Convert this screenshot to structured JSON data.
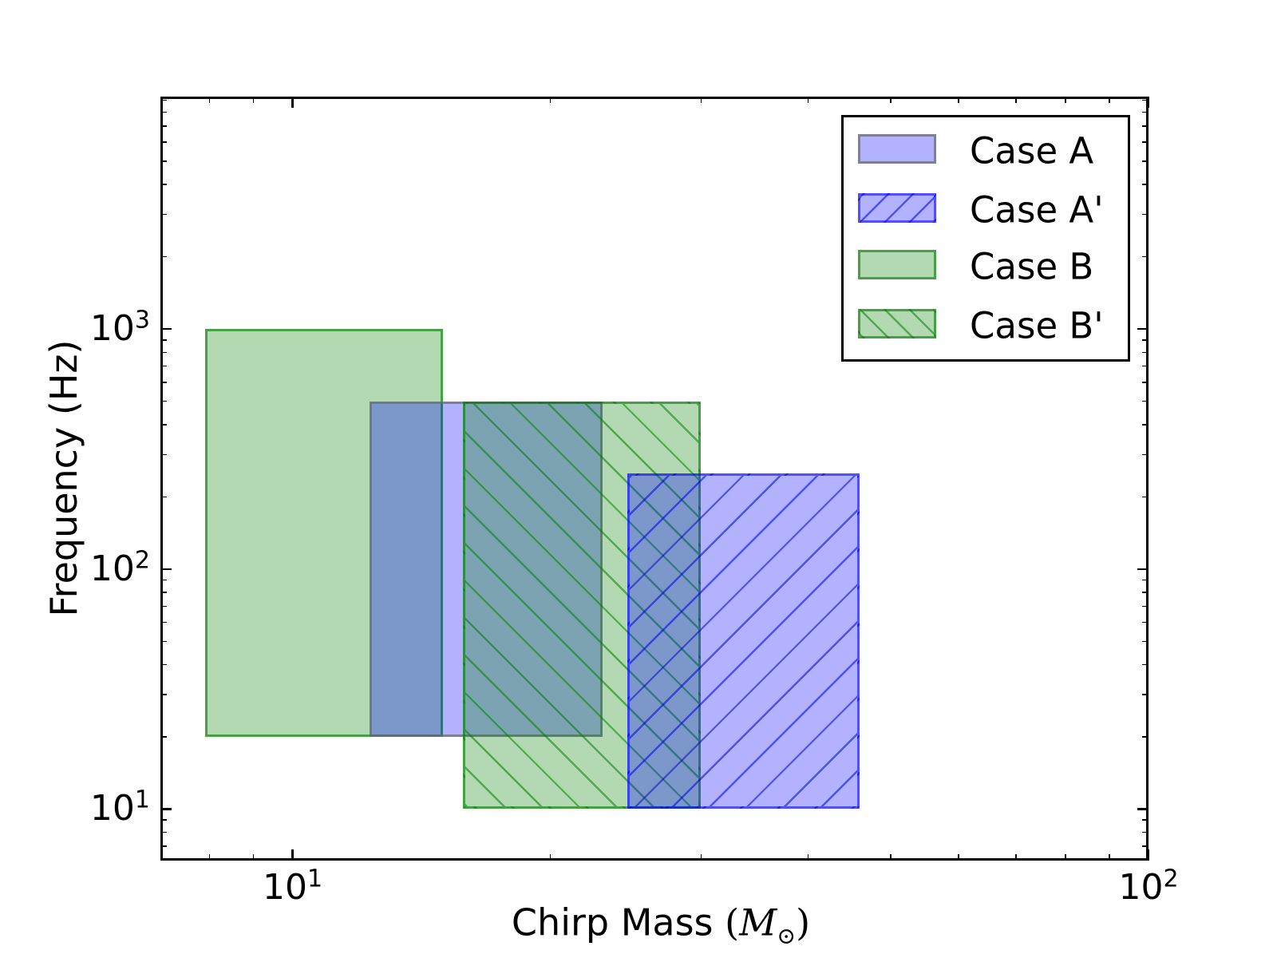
{
  "labels": {
    "ylabel": "Frequency (Hz)",
    "xlabel_text": "Chirp Mass ",
    "xlabel_open": "(",
    "xlabel_var": "M",
    "xlabel_sub": "⊙",
    "xlabel_close": ")",
    "xtick_labels": [
      {
        "base": "10",
        "exp": "1"
      },
      {
        "base": "10",
        "exp": "2"
      }
    ],
    "ytick_labels": [
      {
        "base": "10",
        "exp": "1"
      },
      {
        "base": "10",
        "exp": "2"
      },
      {
        "base": "10",
        "exp": "3"
      }
    ]
  },
  "legend": {
    "position": "upper right",
    "items": [
      {
        "label": "Case A",
        "series_index": 0
      },
      {
        "label": "Case A'",
        "series_index": 1
      },
      {
        "label": "Case B",
        "series_index": 2
      },
      {
        "label": "Case B'",
        "series_index": 3
      }
    ]
  },
  "chart_data": {
    "type": "area",
    "subtype": "parameter-space-rectangles",
    "title": "",
    "xlabel": "Chirp Mass (M_sun)",
    "ylabel": "Frequency (Hz)",
    "xscale": "log",
    "yscale": "log",
    "xlim": [
      7,
      100
    ],
    "ylim": [
      6.1,
      9300
    ],
    "grid": false,
    "legend_position": "upper right",
    "xticks_major": [
      10,
      100
    ],
    "xticks_major_labels": [
      "10^1",
      "10^2"
    ],
    "xticks_minor": [
      8,
      9,
      20,
      30,
      40,
      50,
      60,
      70,
      80,
      90
    ],
    "yticks_major": [
      10,
      100,
      1000
    ],
    "yticks_major_labels": [
      "10^1",
      "10^2",
      "10^3"
    ],
    "yticks_minor": [
      7,
      8,
      9,
      20,
      30,
      40,
      50,
      60,
      70,
      80,
      90,
      200,
      300,
      400,
      500,
      600,
      700,
      800,
      900,
      2000,
      3000,
      4000,
      5000,
      6000,
      7000,
      8000,
      9000
    ],
    "series": [
      {
        "name": "Case A",
        "x_range": [
          12.3,
          23.0
        ],
        "y_range_hz": [
          20,
          500
        ],
        "fill": "rgba(0,0,255,0.3)",
        "edge": "rgba(110,110,118,0.75)",
        "hatch": "none",
        "hatch_color": ""
      },
      {
        "name": "Case A'",
        "x_range": [
          24.6,
          46.0
        ],
        "y_range_hz": [
          10,
          250
        ],
        "fill": "rgba(0,0,255,0.3)",
        "edge": "rgba(0,0,255,0.55)",
        "hatch": "/",
        "hatch_color": "rgba(0,0,220,0.55)"
      },
      {
        "name": "Case B",
        "x_range": [
          7.9,
          15.0
        ],
        "y_range_hz": [
          20,
          1000
        ],
        "fill": "rgba(0,128,0,0.3)",
        "edge": "rgba(0,128,0,0.62)",
        "hatch": "none",
        "hatch_color": ""
      },
      {
        "name": "Case B'",
        "x_range": [
          15.8,
          30.0
        ],
        "y_range_hz": [
          10,
          500
        ],
        "fill": "rgba(0,128,0,0.3)",
        "edge": "rgba(0,128,0,0.62)",
        "hatch": "\\",
        "hatch_color": "rgba(0,128,0,0.55)"
      }
    ],
    "draw_order_indices": [
      2,
      0,
      3,
      1
    ]
  }
}
